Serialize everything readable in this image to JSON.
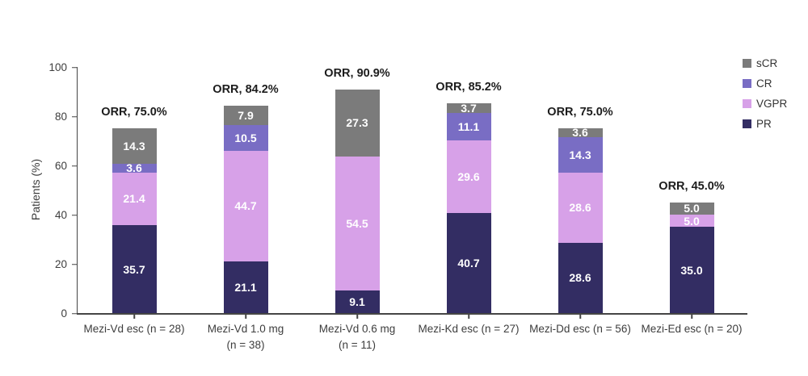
{
  "legend": {
    "items": [
      {
        "label": "sCR",
        "color": "#7b7b7b"
      },
      {
        "label": "CR",
        "color": "#796dc4"
      },
      {
        "label": "VGPR",
        "color": "#d7a1e8"
      },
      {
        "label": "PR",
        "color": "#332d63"
      }
    ]
  },
  "chart_data": {
    "type": "bar",
    "stacked": true,
    "title": "",
    "xlabel": "",
    "ylabel": "Patients (%)",
    "ylim": [
      0,
      100
    ],
    "yticks": [
      0,
      20,
      40,
      60,
      80,
      100
    ],
    "grid": false,
    "legend_position": "top-right",
    "legend_order_top_to_bottom": [
      "sCR",
      "CR",
      "VGPR",
      "PR"
    ],
    "categories": [
      "Mezi-Vd esc (n = 28)",
      "Mezi-Vd 1.0 mg\n(n = 38)",
      "Mezi-Vd 0.6 mg\n(n = 11)",
      "Mezi-Kd esc (n = 27)",
      "Mezi-Dd esc (n = 56)",
      "Mezi-Ed esc (n = 20)"
    ],
    "series": [
      {
        "name": "PR",
        "color": "#332d63",
        "values": [
          35.7,
          21.1,
          9.1,
          40.7,
          28.6,
          35.0
        ]
      },
      {
        "name": "VGPR",
        "color": "#d7a1e8",
        "values": [
          21.4,
          44.7,
          54.5,
          29.6,
          28.6,
          5.0
        ]
      },
      {
        "name": "CR",
        "color": "#796dc4",
        "values": [
          3.6,
          10.5,
          0,
          11.1,
          14.3,
          0
        ]
      },
      {
        "name": "sCR",
        "color": "#7b7b7b",
        "values": [
          14.3,
          7.9,
          27.3,
          3.7,
          3.6,
          5.0
        ]
      }
    ],
    "series_stack_order": "bottom-to-top",
    "annotations": [
      "ORR, 75.0%",
      "ORR, 84.2%",
      "ORR, 90.9%",
      "ORR, 85.2%",
      "ORR, 75.0%",
      "ORR, 45.0%"
    ]
  }
}
